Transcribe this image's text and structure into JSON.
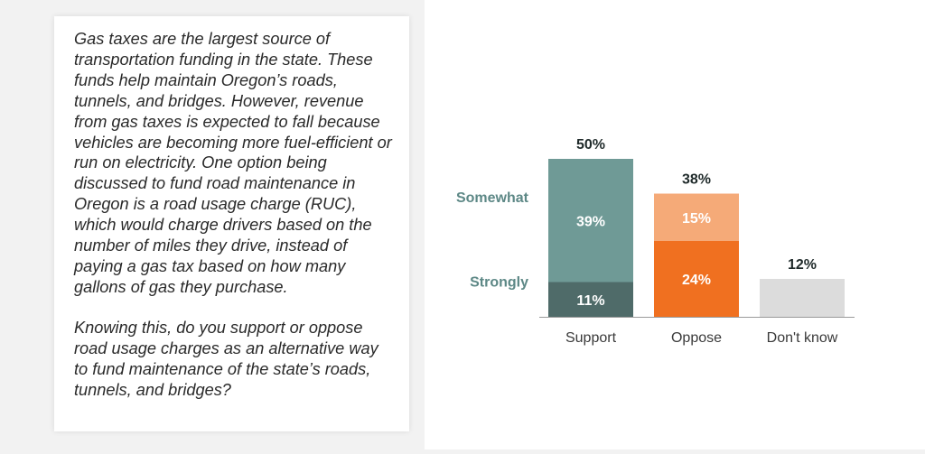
{
  "question": {
    "paragraph1": "Gas taxes are the largest source of transportation funding in the state. These funds help maintain Oregon’s roads, tunnels, and bridges. However, revenue from gas taxes is expected to fall because vehicles are becoming more fuel-efficient or run on electricity. One option being discussed to fund road maintenance in Oregon is a road usage charge (RUC), which would charge drivers based on the number of miles they drive, instead of paying a gas tax based on how many gallons of gas they purchase.",
    "paragraph2": "Knowing this, do you support or oppose road usage charges as an alternative way to fund maintenance of the state’s roads, tunnels, and bridges?"
  },
  "chart_data": {
    "type": "bar",
    "stacked": true,
    "title": "",
    "xlabel": "",
    "ylabel": "",
    "ylim": [
      0,
      55
    ],
    "grid": false,
    "categories": [
      "Support",
      "Oppose",
      "Don't know"
    ],
    "totals": [
      "50%",
      "38%",
      "12%"
    ],
    "total_values": [
      50,
      38,
      12
    ],
    "series": [
      {
        "name": "Strongly",
        "values": [
          11,
          24,
          null
        ],
        "labels": [
          "11%",
          "24%",
          ""
        ],
        "colors": [
          "#4f6b69",
          "#f07020",
          null
        ]
      },
      {
        "name": "Somewhat",
        "values": [
          39,
          15,
          null
        ],
        "labels": [
          "39%",
          "15%",
          ""
        ],
        "colors": [
          "#6f9a96",
          "#f5aa78",
          null
        ]
      },
      {
        "name": "",
        "values": [
          null,
          null,
          12
        ],
        "labels": [
          "",
          "",
          ""
        ],
        "colors": [
          null,
          null,
          "#dcdcdc"
        ]
      }
    ],
    "series_label_color": "#5d8886",
    "total_label_color": "#1f2a2a",
    "inner_label_color": "#ffffff",
    "category_label_color": "#3a3a3a",
    "baseline_color": "#9a9a9a"
  }
}
